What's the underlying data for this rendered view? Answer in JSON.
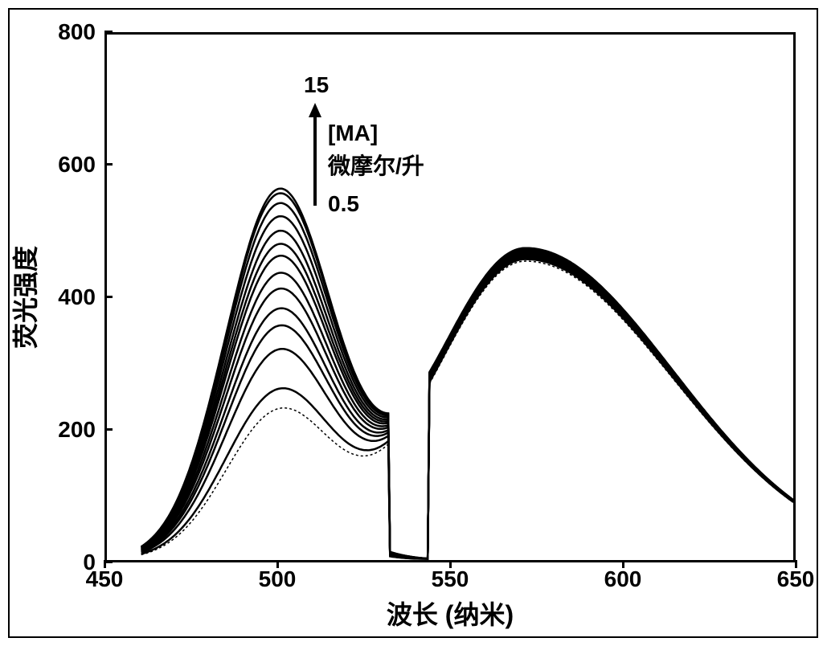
{
  "chart": {
    "type": "line",
    "background_color": "#ffffff",
    "border_color": "#000000",
    "border_width": 3,
    "xlabel": "波长 (纳米)",
    "ylabel": "荧光强度",
    "label_fontsize": 32,
    "label_fontweight": "bold",
    "tick_fontsize": 28,
    "tick_fontweight": "bold",
    "xlim": [
      450,
      650
    ],
    "ylim": [
      0,
      800
    ],
    "xtick_values": [
      450,
      500,
      550,
      600,
      650
    ],
    "ytick_values": [
      0,
      200,
      400,
      600,
      800
    ],
    "line_color": "#000000",
    "line_width": 2.5,
    "series_peak1": {
      "center": 500,
      "width": 22,
      "peaks": [
        218,
        248,
        308,
        344,
        370,
        400,
        424,
        450,
        468,
        488,
        510,
        530,
        545,
        552
      ],
      "lowest_dashed": true
    },
    "series_peak2": {
      "center": 572,
      "width": 38,
      "peaks": [
        455,
        458,
        460,
        462,
        464,
        466,
        467,
        468,
        470,
        471,
        472,
        473,
        474,
        475
      ],
      "asymmetry_right": 1.6
    },
    "annotations": {
      "top_label": "15",
      "bottom_label": "0.5",
      "mid_label_line1": "[MA]",
      "mid_label_line2": "微摩尔/升",
      "arrow_color": "#000000",
      "arrow_width": 4
    }
  }
}
